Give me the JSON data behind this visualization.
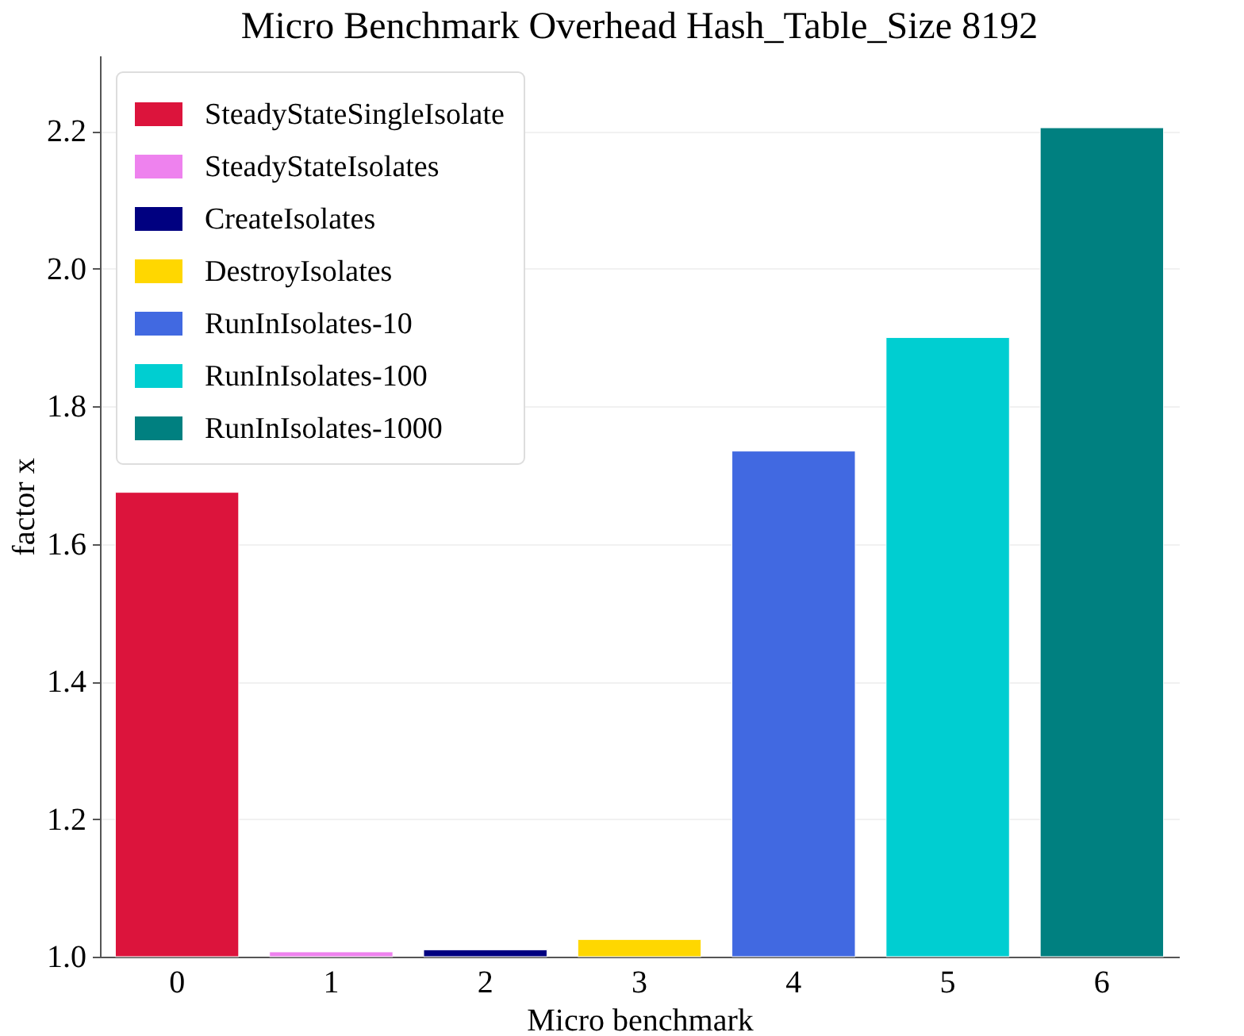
{
  "chart_data": {
    "type": "bar",
    "title": "Micro Benchmark Overhead Hash_Table_Size 8192",
    "xlabel": "Micro benchmark",
    "ylabel": "factor x",
    "categories": [
      "0",
      "1",
      "2",
      "3",
      "4",
      "5",
      "6"
    ],
    "series": [
      {
        "name": "SteadyStateSingleIsolate",
        "color": "#dc143c",
        "values": [
          1.675,
          null,
          null,
          null,
          null,
          null,
          null
        ]
      },
      {
        "name": "SteadyStateIsolates",
        "color": "#ee82ee",
        "values": [
          null,
          1.007,
          null,
          null,
          null,
          null,
          null
        ]
      },
      {
        "name": "CreateIsolates",
        "color": "#000080",
        "values": [
          null,
          null,
          1.01,
          null,
          null,
          null,
          null
        ]
      },
      {
        "name": "DestroyIsolates",
        "color": "#ffd700",
        "values": [
          null,
          null,
          null,
          1.025,
          null,
          null,
          null
        ]
      },
      {
        "name": "RunInIsolates-10",
        "color": "#4169e1",
        "values": [
          null,
          null,
          null,
          null,
          1.735,
          null,
          null
        ]
      },
      {
        "name": "RunInIsolates-100",
        "color": "#00ced1",
        "values": [
          null,
          null,
          null,
          null,
          null,
          1.9,
          null
        ]
      },
      {
        "name": "RunInIsolates-1000",
        "color": "#008080",
        "values": [
          null,
          null,
          null,
          null,
          null,
          null,
          2.205
        ]
      }
    ],
    "ylim": [
      1.0,
      2.31
    ],
    "yticks": [
      {
        "value": 1.0,
        "label": "1.0"
      },
      1.2,
      1.4,
      1.6,
      1.8,
      {
        "value": 2.0,
        "label": "2.0"
      },
      2.2
    ],
    "grid": "y",
    "legend": "top left"
  }
}
